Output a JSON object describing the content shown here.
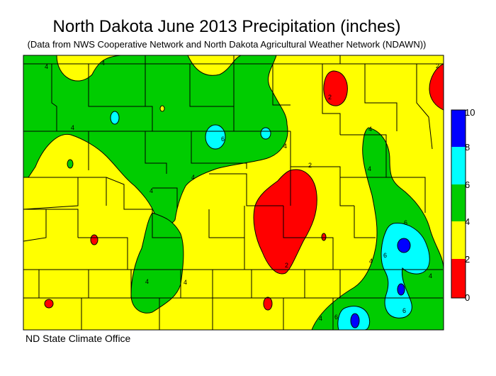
{
  "title": "North Dakota June 2013 Precipitation (inches)",
  "subtitle": "(Data from NWS Cooperative Network and North Dakota Agricultural Weather Network (NDAWN))",
  "credit": "ND State Climate Office",
  "legend": {
    "bins": [
      {
        "from": 0,
        "to": 2,
        "color": "#ff0000"
      },
      {
        "from": 2,
        "to": 4,
        "color": "#ffff00"
      },
      {
        "from": 4,
        "to": 6,
        "color": "#00cc00"
      },
      {
        "from": 6,
        "to": 8,
        "color": "#00ffff"
      },
      {
        "from": 8,
        "to": 10,
        "color": "#0000ff"
      }
    ],
    "labels": [
      "10",
      "8",
      "6",
      "4",
      "2",
      "0"
    ]
  },
  "contour_labels": {
    "two": "2",
    "four": "4",
    "six": "6"
  }
}
